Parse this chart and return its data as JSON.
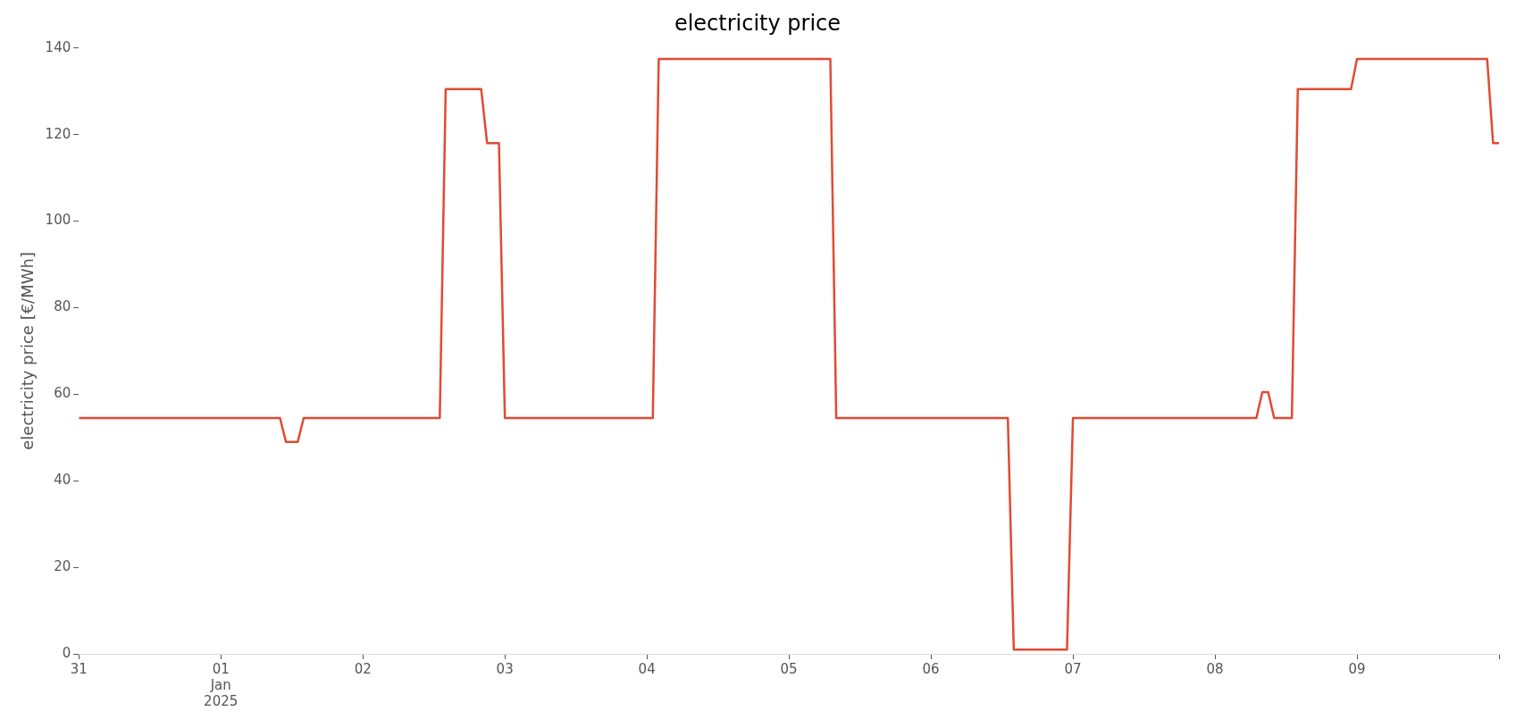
{
  "chart_data": {
    "type": "line",
    "title": "electricity price",
    "ylabel": "electricity price [€/MWh]",
    "series": [
      {
        "color": "#e24a33",
        "x": [
          "2024-12-31T00:00",
          "2025-01-01T10:00",
          "2025-01-01T11:00",
          "2025-01-01T13:00",
          "2025-01-01T14:00",
          "2025-01-02T13:00",
          "2025-01-02T14:00",
          "2025-01-02T20:00",
          "2025-01-02T21:00",
          "2025-01-02T23:00",
          "2025-01-03T00:00",
          "2025-01-04T01:00",
          "2025-01-04T02:00",
          "2025-01-05T07:00",
          "2025-01-05T08:00",
          "2025-01-06T13:00",
          "2025-01-06T14:00",
          "2025-01-06T23:00",
          "2025-01-07T00:00",
          "2025-01-08T07:00",
          "2025-01-08T08:00",
          "2025-01-08T09:00",
          "2025-01-08T10:00",
          "2025-01-08T13:00",
          "2025-01-08T14:00",
          "2025-01-08T23:00",
          "2025-01-09T00:00",
          "2025-01-09T22:00",
          "2025-01-09T23:00",
          "2025-01-10T00:00"
        ],
        "values": [
          54.5,
          54.5,
          49,
          49,
          54.5,
          54.5,
          130.5,
          130.5,
          118,
          118,
          54.5,
          54.5,
          137.5,
          137.5,
          54.5,
          54.5,
          1,
          1,
          54.5,
          54.5,
          60.5,
          60.5,
          54.5,
          54.5,
          130.5,
          130.5,
          137.5,
          137.5,
          118,
          118
        ]
      }
    ],
    "xlim": [
      "2024-12-31",
      "2025-01-10"
    ],
    "xticks": [
      {
        "value": "2024-12-31",
        "label": "31"
      },
      {
        "value": "2025-01-01",
        "label": "01\nJan\n2025"
      },
      {
        "value": "2025-01-02",
        "label": "02"
      },
      {
        "value": "2025-01-03",
        "label": "03"
      },
      {
        "value": "2025-01-04",
        "label": "04"
      },
      {
        "value": "2025-01-05",
        "label": "05"
      },
      {
        "value": "2025-01-06",
        "label": "06"
      },
      {
        "value": "2025-01-07",
        "label": "07"
      },
      {
        "value": "2025-01-08",
        "label": "08"
      },
      {
        "value": "2025-01-09",
        "label": "09"
      },
      {
        "value": "2025-01-10",
        "label": null
      }
    ],
    "ylim": [
      0,
      140
    ],
    "yticks": [
      0,
      20,
      40,
      60,
      80,
      100,
      120,
      140
    ]
  }
}
